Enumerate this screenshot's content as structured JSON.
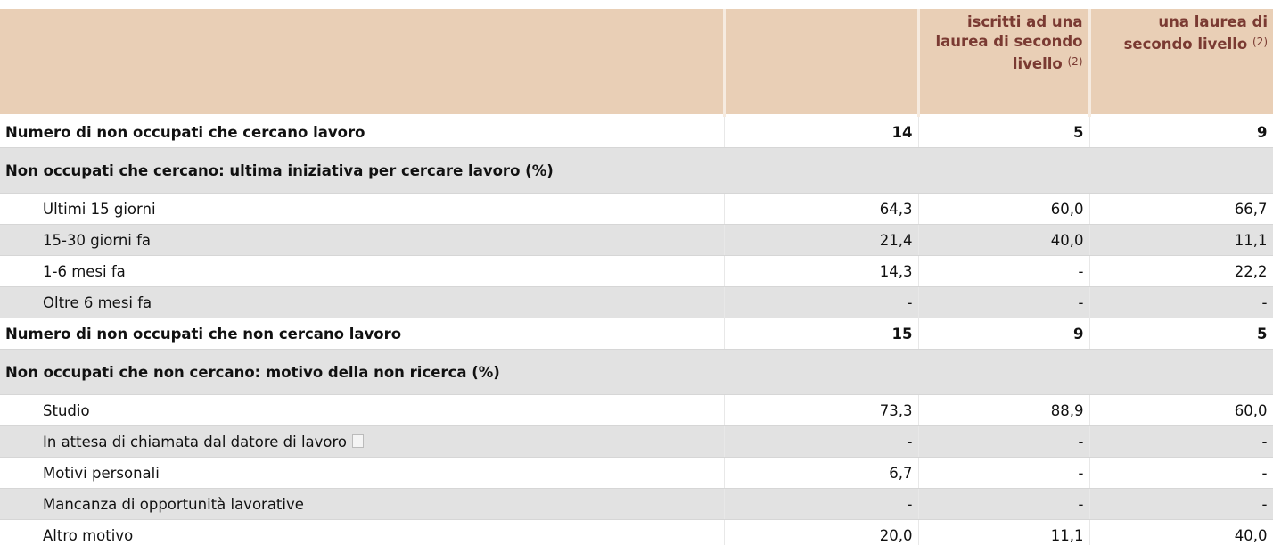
{
  "table": {
    "header": [
      {
        "label": "iscritti ad una laurea di secondo livello",
        "note": "(2)"
      },
      {
        "label": "una laurea di secondo livello",
        "note": "(2)"
      }
    ],
    "rows": [
      {
        "label": "Numero di non occupati che cercano lavoro",
        "values": [
          "14",
          "5",
          "9"
        ]
      },
      {
        "label": "Non occupati che cercano: ultima iniziativa per cercare lavoro (%)"
      },
      {
        "label": "Ultimi 15 giorni",
        "values": [
          "64,3",
          "60,0",
          "66,7"
        ]
      },
      {
        "label": "15-30 giorni fa",
        "values": [
          "21,4",
          "40,0",
          "11,1"
        ]
      },
      {
        "label": "1-6 mesi fa",
        "values": [
          "14,3",
          "-",
          "22,2"
        ]
      },
      {
        "label": "Oltre 6 mesi fa",
        "values": [
          "-",
          "-",
          "-"
        ]
      },
      {
        "label": "Numero di non occupati che non cercano lavoro",
        "values": [
          "15",
          "9",
          "5"
        ]
      },
      {
        "label": "Non occupati che non cercano: motivo della non ricerca (%)"
      },
      {
        "label": "Studio",
        "values": [
          "73,3",
          "88,9",
          "60,0"
        ]
      },
      {
        "label": "In attesa di chiamata dal datore di lavoro",
        "values": [
          "-",
          "-",
          "-"
        ]
      },
      {
        "label": "Motivi personali",
        "values": [
          "6,7",
          "-",
          "-"
        ]
      },
      {
        "label": "Mancanza di opportunità lavorative",
        "values": [
          "-",
          "-",
          "-"
        ]
      },
      {
        "label": "Altro motivo",
        "values": [
          "20,0",
          "11,1",
          "40,0"
        ]
      }
    ]
  }
}
